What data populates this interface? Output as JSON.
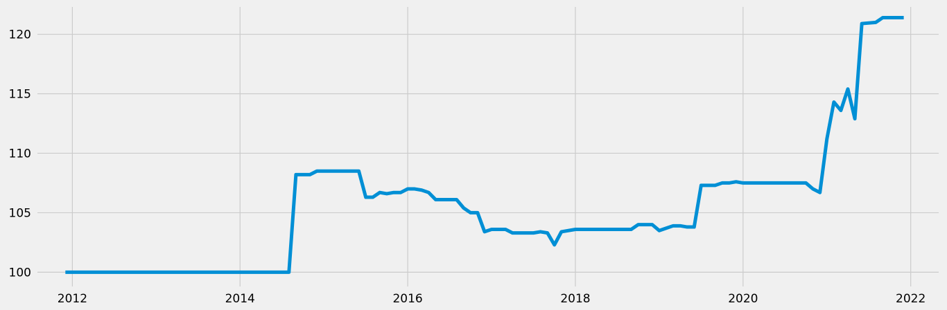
{
  "chart_data": {
    "type": "line",
    "title": "",
    "xlabel": "",
    "ylabel": "",
    "x_axis_type": "date",
    "xlim": [
      "2011-08-01",
      "2022-05-01"
    ],
    "ylim": [
      98.8,
      122.3
    ],
    "x_ticks": [
      "2012",
      "2014",
      "2016",
      "2018",
      "2020",
      "2022"
    ],
    "y_ticks": [
      "100",
      "105",
      "110",
      "115",
      "120"
    ],
    "grid": true,
    "legend": "none",
    "background_color": "#f0f0f0",
    "grid_color": "#cbcbcb",
    "line_color": "#008fd5",
    "series": [
      {
        "points": [
          [
            "2011-12-01",
            100.0
          ],
          [
            "2012-06-01",
            100.0
          ],
          [
            "2013-01-01",
            100.0
          ],
          [
            "2013-06-01",
            100.0
          ],
          [
            "2014-01-01",
            100.0
          ],
          [
            "2014-06-01",
            100.0
          ],
          [
            "2014-08-01",
            100.0
          ],
          [
            "2014-09-01",
            108.2
          ],
          [
            "2014-11-01",
            108.2
          ],
          [
            "2014-12-01",
            108.5
          ],
          [
            "2015-06-01",
            108.5
          ],
          [
            "2015-07-01",
            106.3
          ],
          [
            "2015-08-01",
            106.3
          ],
          [
            "2015-09-01",
            106.7
          ],
          [
            "2015-10-01",
            106.6
          ],
          [
            "2015-11-01",
            106.7
          ],
          [
            "2015-12-01",
            106.7
          ],
          [
            "2016-01-01",
            107.0
          ],
          [
            "2016-02-01",
            107.0
          ],
          [
            "2016-03-01",
            106.9
          ],
          [
            "2016-04-01",
            106.7
          ],
          [
            "2016-05-01",
            106.1
          ],
          [
            "2016-08-01",
            106.1
          ],
          [
            "2016-09-01",
            105.4
          ],
          [
            "2016-10-01",
            105.0
          ],
          [
            "2016-11-01",
            105.0
          ],
          [
            "2016-12-01",
            103.4
          ],
          [
            "2017-01-01",
            103.6
          ],
          [
            "2017-03-01",
            103.6
          ],
          [
            "2017-04-01",
            103.3
          ],
          [
            "2017-07-01",
            103.3
          ],
          [
            "2017-08-01",
            103.4
          ],
          [
            "2017-09-01",
            103.3
          ],
          [
            "2017-10-01",
            102.3
          ],
          [
            "2017-11-01",
            103.4
          ],
          [
            "2018-01-01",
            103.6
          ],
          [
            "2018-09-01",
            103.6
          ],
          [
            "2018-10-01",
            104.0
          ],
          [
            "2018-12-01",
            104.0
          ],
          [
            "2019-01-01",
            103.5
          ],
          [
            "2019-02-01",
            103.7
          ],
          [
            "2019-03-01",
            103.9
          ],
          [
            "2019-04-01",
            103.9
          ],
          [
            "2019-05-01",
            103.8
          ],
          [
            "2019-06-01",
            103.8
          ],
          [
            "2019-07-01",
            107.3
          ],
          [
            "2019-09-01",
            107.3
          ],
          [
            "2019-10-01",
            107.5
          ],
          [
            "2019-11-01",
            107.5
          ],
          [
            "2019-12-01",
            107.6
          ],
          [
            "2020-01-01",
            107.5
          ],
          [
            "2020-10-01",
            107.5
          ],
          [
            "2020-11-01",
            107.0
          ],
          [
            "2020-12-01",
            106.7
          ],
          [
            "2021-01-01",
            111.2
          ],
          [
            "2021-02-01",
            114.3
          ],
          [
            "2021-03-01",
            113.6
          ],
          [
            "2021-04-01",
            115.4
          ],
          [
            "2021-05-01",
            112.9
          ],
          [
            "2021-06-01",
            120.9
          ],
          [
            "2021-08-01",
            121.0
          ],
          [
            "2021-09-01",
            121.4
          ],
          [
            "2021-12-01",
            121.4
          ]
        ]
      }
    ]
  }
}
